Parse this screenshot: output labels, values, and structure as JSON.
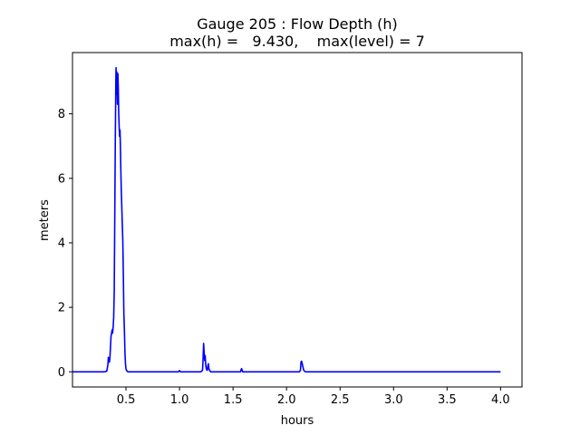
{
  "chart_data": {
    "type": "line",
    "title_line1": "Gauge 205 : Flow Depth (h)",
    "title_line2": "max(h) =   9.430,    max(level) = 7",
    "xlabel": "hours",
    "ylabel": "meters",
    "xlim": [
      0.0,
      4.2
    ],
    "ylim": [
      -0.47,
      9.9
    ],
    "xticks": [
      0.5,
      1.0,
      1.5,
      2.0,
      2.5,
      3.0,
      3.5,
      4.0
    ],
    "xtick_labels": [
      "0.5",
      "1.0",
      "1.5",
      "2.0",
      "2.5",
      "3.0",
      "3.5",
      "4.0"
    ],
    "yticks": [
      0,
      2,
      4,
      6,
      8
    ],
    "ytick_labels": [
      "0",
      "2",
      "4",
      "6",
      "8"
    ],
    "grid": false,
    "series": [
      {
        "color": "#0000ff",
        "x": [
          0.0,
          0.3,
          0.32,
          0.33,
          0.335,
          0.34,
          0.345,
          0.35,
          0.36,
          0.37,
          0.375,
          0.38,
          0.385,
          0.39,
          0.395,
          0.4,
          0.405,
          0.407,
          0.409,
          0.411,
          0.414,
          0.417,
          0.42,
          0.424,
          0.428,
          0.432,
          0.436,
          0.44,
          0.444,
          0.448,
          0.452,
          0.456,
          0.46,
          0.465,
          0.47,
          0.475,
          0.48,
          0.485,
          0.49,
          0.495,
          0.5,
          0.51,
          0.52,
          0.6,
          0.99,
          1.0,
          1.01,
          1.2,
          1.215,
          1.22,
          1.225,
          1.23,
          1.235,
          1.24,
          1.245,
          1.25,
          1.255,
          1.26,
          1.265,
          1.27,
          1.275,
          1.28,
          1.285,
          1.29,
          1.3,
          1.57,
          1.575,
          1.58,
          1.59,
          2.12,
          2.13,
          2.135,
          2.14,
          2.145,
          2.15,
          2.155,
          2.16,
          2.165,
          2.17,
          2.18,
          4.0
        ],
        "y": [
          0.0,
          0.0,
          0.02,
          0.2,
          0.45,
          0.35,
          0.3,
          0.45,
          1.1,
          1.3,
          1.2,
          1.4,
          1.7,
          2.5,
          4.8,
          7.2,
          9.0,
          9.43,
          9.1,
          8.6,
          9.3,
          8.9,
          8.3,
          9.25,
          8.8,
          8.0,
          7.6,
          7.3,
          7.5,
          6.9,
          6.2,
          5.6,
          5.2,
          4.6,
          4.1,
          3.0,
          1.8,
          1.3,
          0.6,
          0.25,
          0.08,
          0.02,
          0.0,
          0.0,
          0.0,
          0.04,
          0.0,
          0.0,
          0.05,
          0.4,
          0.88,
          0.6,
          0.35,
          0.5,
          0.2,
          0.1,
          0.05,
          0.05,
          0.2,
          0.25,
          0.1,
          0.05,
          0.03,
          0.0,
          0.0,
          0.0,
          0.06,
          0.1,
          0.0,
          0.0,
          0.05,
          0.3,
          0.33,
          0.28,
          0.2,
          0.12,
          0.06,
          0.03,
          0.01,
          0.0,
          0.0
        ]
      }
    ]
  }
}
